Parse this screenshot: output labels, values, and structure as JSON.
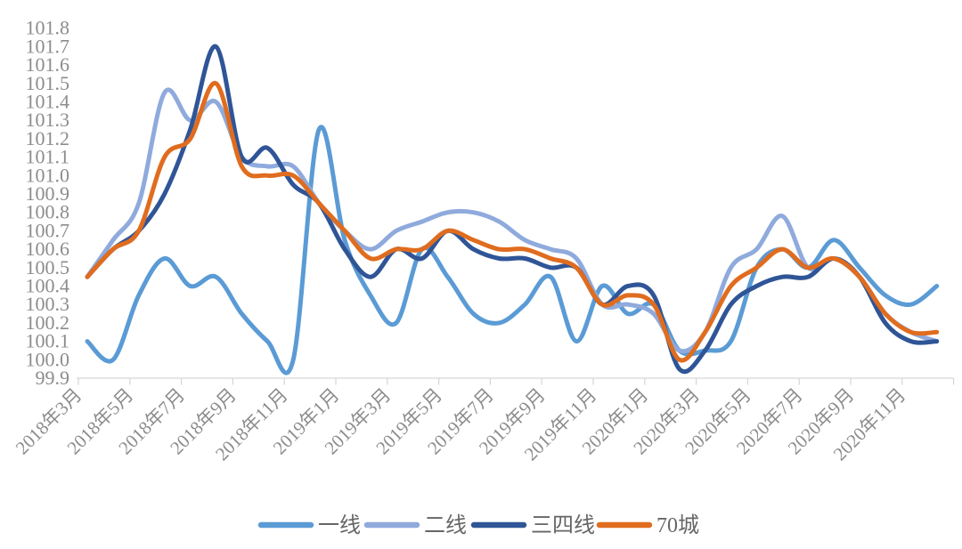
{
  "chart_data": {
    "type": "line",
    "title": "",
    "x_tick_labels": [
      "2018年3月",
      "2018年5月",
      "2018年7月",
      "2018年9月",
      "2018年11月",
      "2019年1月",
      "2019年3月",
      "2019年5月",
      "2019年7月",
      "2019年9月",
      "2019年11月",
      "2020年1月",
      "2020年3月",
      "2020年5月",
      "2020年7月",
      "2020年9月",
      "2020年11月"
    ],
    "months": [
      "2018年3月",
      "2018年4月",
      "2018年5月",
      "2018年6月",
      "2018年7月",
      "2018年8月",
      "2018年9月",
      "2018年10月",
      "2018年11月",
      "2018年12月",
      "2019年1月",
      "2019年2月",
      "2019年3月",
      "2019年4月",
      "2019年5月",
      "2019年6月",
      "2019年7月",
      "2019年8月",
      "2019年9月",
      "2019年10月",
      "2019年11月",
      "2019年12月",
      "2020年1月",
      "2020年2月",
      "2020年3月",
      "2020年4月",
      "2020年5月",
      "2020年6月",
      "2020年7月",
      "2020年8月",
      "2020年9月",
      "2020年10月",
      "2020年11月",
      "2020年12月"
    ],
    "ylim": [
      99.9,
      101.8
    ],
    "ytick_step": 0.1,
    "grid": "off",
    "legend_position": "bottom-center",
    "axis_text_color": "#8c8c8c",
    "legend_text_color": "#666666",
    "axis_line_color": "#d6d6d6",
    "series": [
      {
        "name": "一线",
        "color": "#5B9BD5",
        "values": [
          100.1,
          100.0,
          100.35,
          100.55,
          100.4,
          100.45,
          100.25,
          100.1,
          100.0,
          101.25,
          100.65,
          100.35,
          100.2,
          100.6,
          100.45,
          100.25,
          100.2,
          100.3,
          100.45,
          100.1,
          100.4,
          100.25,
          100.3,
          100.05,
          100.05,
          100.1,
          100.5,
          100.6,
          100.5,
          100.65,
          100.5,
          100.35,
          100.3,
          100.4
        ]
      },
      {
        "name": "二线",
        "color": "#8FAADC",
        "values": [
          100.45,
          100.65,
          100.85,
          101.45,
          101.3,
          101.4,
          101.1,
          101.05,
          101.05,
          100.85,
          100.7,
          100.6,
          100.7,
          100.75,
          100.8,
          100.8,
          100.75,
          100.65,
          100.6,
          100.55,
          100.3,
          100.3,
          100.25,
          100.05,
          100.15,
          100.5,
          100.6,
          100.78,
          100.5,
          100.55,
          100.45,
          100.25,
          100.15,
          100.1
        ]
      },
      {
        "name": "三四线",
        "color": "#2F5597",
        "values": [
          100.45,
          100.6,
          100.7,
          100.9,
          101.25,
          101.7,
          101.1,
          101.15,
          100.95,
          100.85,
          100.6,
          100.45,
          100.6,
          100.55,
          100.7,
          100.6,
          100.55,
          100.55,
          100.5,
          100.5,
          100.3,
          100.4,
          100.35,
          99.95,
          100.05,
          100.3,
          100.4,
          100.45,
          100.45,
          100.55,
          100.45,
          100.2,
          100.1,
          100.1
        ]
      },
      {
        "name": "70城",
        "color": "#E06C1F",
        "values": [
          100.45,
          100.6,
          100.7,
          101.1,
          101.2,
          101.5,
          101.05,
          101.0,
          101.0,
          100.85,
          100.7,
          100.55,
          100.6,
          100.6,
          100.7,
          100.65,
          100.6,
          100.6,
          100.55,
          100.5,
          100.3,
          100.35,
          100.3,
          100.0,
          100.15,
          100.4,
          100.5,
          100.6,
          100.5,
          100.55,
          100.45,
          100.25,
          100.15,
          100.15
        ]
      }
    ]
  }
}
